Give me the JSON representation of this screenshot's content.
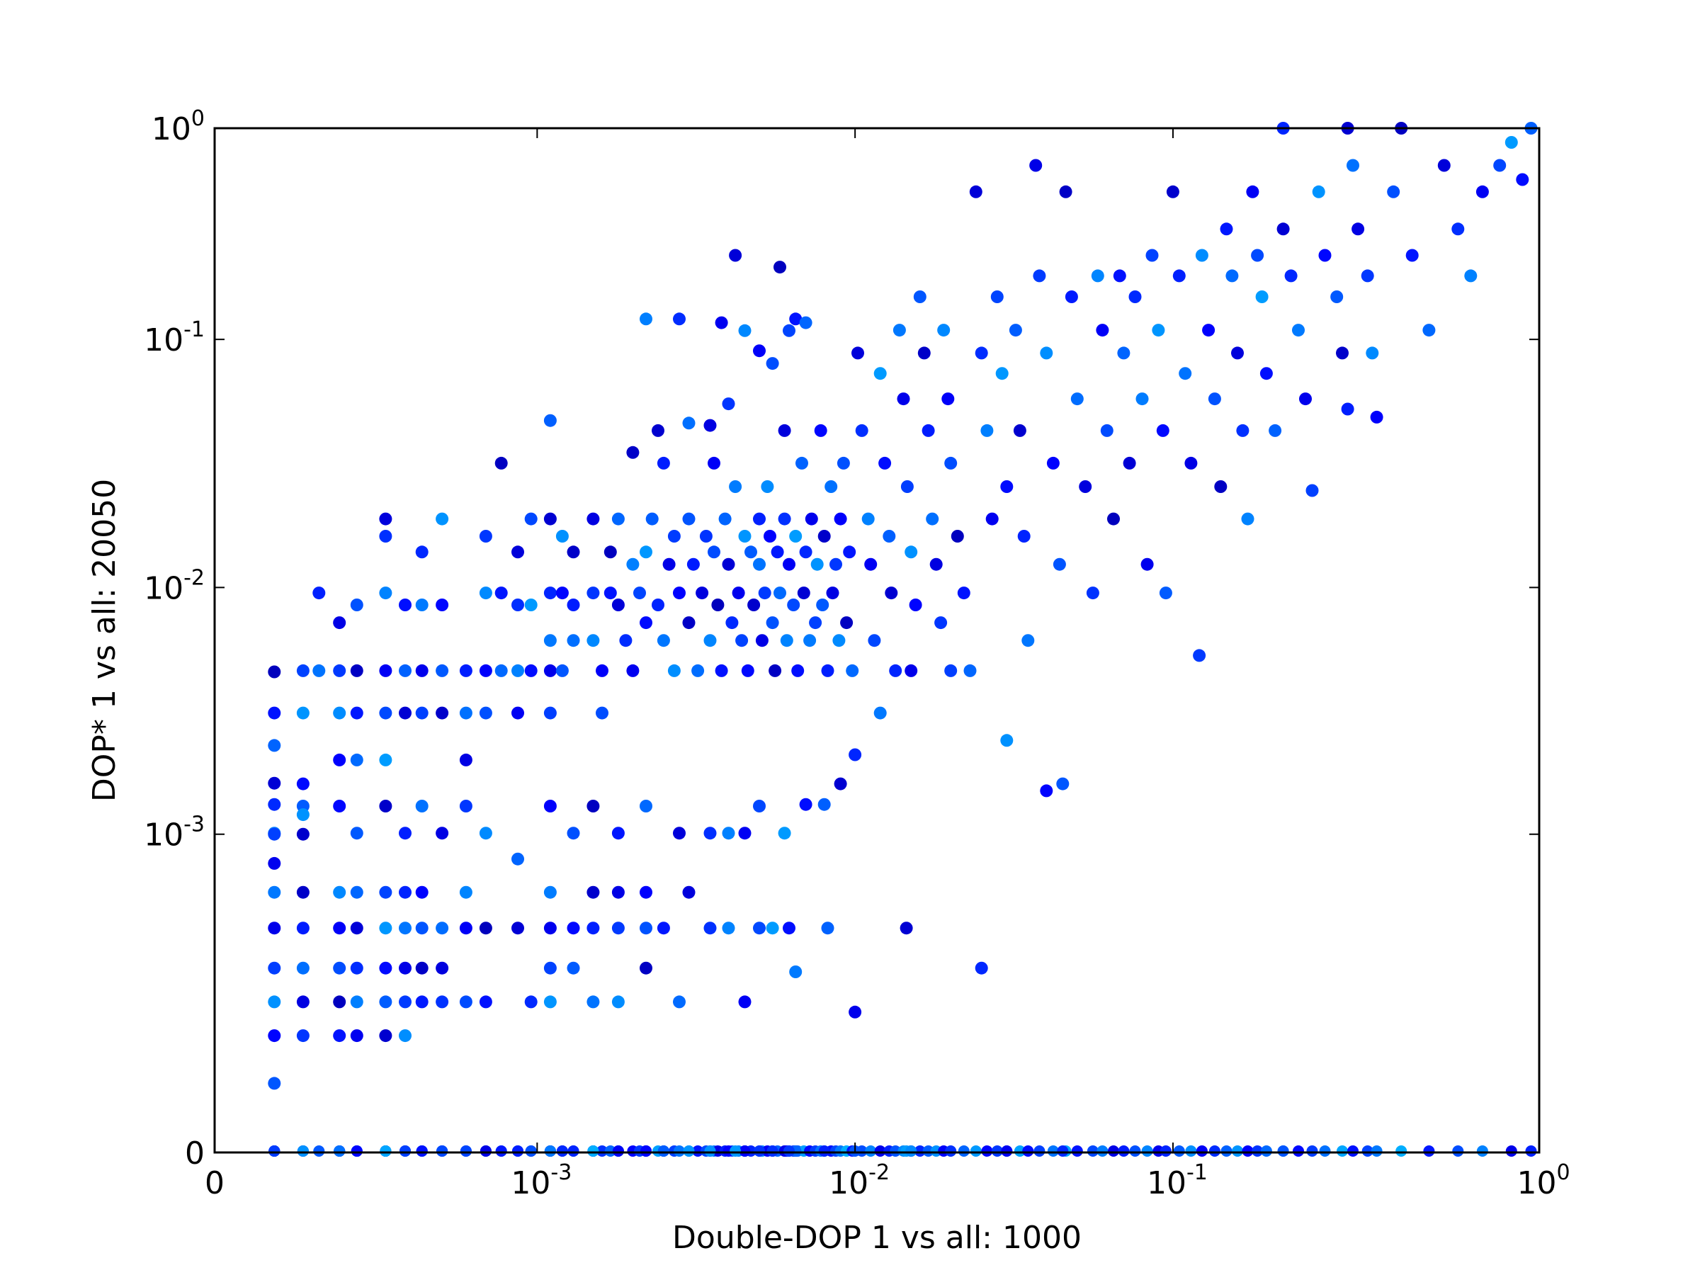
{
  "chart_data": {
    "type": "scatter",
    "xlabel": "Double-DOP 1 vs all: 1000",
    "ylabel": "DOP* 1 vs all: 20050",
    "xscale": "symlog",
    "yscale": "symlog",
    "xlim": [
      0,
      1
    ],
    "ylim": [
      0,
      1
    ],
    "xticks": [
      {
        "value": 0,
        "base": "0",
        "exp": ""
      },
      {
        "value": 0.001,
        "base": "10",
        "exp": "-3"
      },
      {
        "value": 0.01,
        "base": "10",
        "exp": "-2"
      },
      {
        "value": 0.1,
        "base": "10",
        "exp": "-1"
      },
      {
        "value": 1,
        "base": "10",
        "exp": "0"
      }
    ],
    "yticks": [
      {
        "value": 0,
        "base": "0",
        "exp": ""
      },
      {
        "value": 0.001,
        "base": "10",
        "exp": "-3"
      },
      {
        "value": 0.01,
        "base": "10",
        "exp": "-2"
      },
      {
        "value": 0.1,
        "base": "10",
        "exp": "-1"
      },
      {
        "value": 1,
        "base": "10",
        "exp": "0"
      }
    ],
    "grid": false,
    "colormap": "jet",
    "colors": {
      "low": "#0000b4",
      "mid": "#0080ff",
      "high": "#ffb000"
    },
    "points": [
      [
        0.00011,
        0.00455
      ],
      [
        0.00011,
        0.0031
      ],
      [
        0.00011,
        0.00229
      ],
      [
        0.00011,
        0.00161
      ],
      [
        0.00011,
        0.00132
      ],
      [
        0.00011,
        0.00101
      ],
      [
        0.00011,
        0.00078
      ],
      [
        0.00014,
        0.0046
      ],
      [
        0.00014,
        0.0031
      ],
      [
        0.00014,
        0.0016
      ],
      [
        0.00014,
        0.0013
      ],
      [
        0.00014,
        0.001
      ],
      [
        0.00016,
        0.0095
      ],
      [
        0.00016,
        0.0046
      ],
      [
        0.00019,
        0.0072
      ],
      [
        0.00019,
        0.0046
      ],
      [
        0.00019,
        0.0031
      ],
      [
        0.00019,
        0.002
      ],
      [
        0.00022,
        0.0085
      ],
      [
        0.00022,
        0.0046
      ],
      [
        0.00022,
        0.0031
      ],
      [
        0.00022,
        0.002
      ],
      [
        0.00028,
        0.0189
      ],
      [
        0.00028,
        0.0161
      ],
      [
        0.00028,
        0.0095
      ],
      [
        0.00028,
        0.0046
      ],
      [
        0.00028,
        0.0031
      ],
      [
        0.00028,
        0.002
      ],
      [
        0.00033,
        0.0085
      ],
      [
        0.00033,
        0.0046
      ],
      [
        0.00033,
        0.0031
      ],
      [
        0.00038,
        0.0139
      ],
      [
        0.00038,
        0.0085
      ],
      [
        0.00038,
        0.0046
      ],
      [
        0.00038,
        0.0031
      ],
      [
        0.00045,
        0.0189
      ],
      [
        0.00045,
        0.0085
      ],
      [
        0.00045,
        0.0046
      ],
      [
        0.00045,
        0.0031
      ],
      [
        0.00055,
        0.0046
      ],
      [
        0.00055,
        0.0031
      ],
      [
        0.00055,
        0.002
      ],
      [
        0.00065,
        0.0161
      ],
      [
        0.00065,
        0.0095
      ],
      [
        0.00065,
        0.0046
      ],
      [
        0.00065,
        0.0031
      ],
      [
        0.00074,
        0.0317
      ],
      [
        0.00074,
        0.0095
      ],
      [
        0.00074,
        0.0046
      ],
      [
        0.00085,
        0.0139
      ],
      [
        0.00085,
        0.0085
      ],
      [
        0.00085,
        0.0046
      ],
      [
        0.00085,
        0.0031
      ],
      [
        0.00095,
        0.0189
      ],
      [
        0.00095,
        0.0085
      ],
      [
        0.00095,
        0.0046
      ],
      [
        0.0011,
        0.0471
      ],
      [
        0.0011,
        0.0189
      ],
      [
        0.0011,
        0.0095
      ],
      [
        0.0011,
        0.0061
      ],
      [
        0.0011,
        0.0046
      ],
      [
        0.0011,
        0.0031
      ],
      [
        0.0012,
        0.0161
      ],
      [
        0.0012,
        0.0095
      ],
      [
        0.0012,
        0.0046
      ],
      [
        0.0013,
        0.0139
      ],
      [
        0.0013,
        0.0085
      ],
      [
        0.0013,
        0.0061
      ],
      [
        0.0015,
        0.0189
      ],
      [
        0.0015,
        0.0095
      ],
      [
        0.0015,
        0.0061
      ],
      [
        0.0016,
        0.0046
      ],
      [
        0.0016,
        0.0031
      ],
      [
        0.0017,
        0.0139
      ],
      [
        0.0017,
        0.0095
      ],
      [
        0.0018,
        0.0189
      ],
      [
        0.0018,
        0.0085
      ],
      [
        0.0019,
        0.0061
      ],
      [
        0.002,
        0.0124
      ],
      [
        0.002,
        0.0046
      ],
      [
        0.0021,
        0.0095
      ],
      [
        0.0022,
        0.0139
      ],
      [
        0.0022,
        0.0072
      ],
      [
        0.0023,
        0.0189
      ],
      [
        0.0024,
        0.0429
      ],
      [
        0.0024,
        0.0085
      ],
      [
        0.0025,
        0.0061
      ],
      [
        0.0026,
        0.0124
      ],
      [
        0.0027,
        0.0161
      ],
      [
        0.0027,
        0.0046
      ],
      [
        0.0028,
        0.0095
      ],
      [
        0.003,
        0.0189
      ],
      [
        0.003,
        0.0072
      ],
      [
        0.0031,
        0.0124
      ],
      [
        0.0032,
        0.0046
      ],
      [
        0.0033,
        0.0095
      ],
      [
        0.0034,
        0.0161
      ],
      [
        0.0035,
        0.0061
      ],
      [
        0.0036,
        0.0317
      ],
      [
        0.0036,
        0.0139
      ],
      [
        0.0037,
        0.0085
      ],
      [
        0.0038,
        0.0046
      ],
      [
        0.0039,
        0.0189
      ],
      [
        0.004,
        0.0124
      ],
      [
        0.0041,
        0.0072
      ],
      [
        0.0042,
        0.0255
      ],
      [
        0.0043,
        0.0095
      ],
      [
        0.0044,
        0.0061
      ],
      [
        0.0045,
        0.0161
      ],
      [
        0.0046,
        0.0046
      ],
      [
        0.0047,
        0.0139
      ],
      [
        0.0048,
        0.0085
      ],
      [
        0.005,
        0.0189
      ],
      [
        0.005,
        0.0124
      ],
      [
        0.0051,
        0.0061
      ],
      [
        0.0052,
        0.0095
      ],
      [
        0.0053,
        0.0255
      ],
      [
        0.0054,
        0.0161
      ],
      [
        0.0055,
        0.0072
      ],
      [
        0.0056,
        0.0046
      ],
      [
        0.0057,
        0.0139
      ],
      [
        0.0058,
        0.0095
      ],
      [
        0.006,
        0.0429
      ],
      [
        0.006,
        0.0189
      ],
      [
        0.0061,
        0.0061
      ],
      [
        0.0062,
        0.0124
      ],
      [
        0.0064,
        0.0085
      ],
      [
        0.0065,
        0.0161
      ],
      [
        0.0066,
        0.0046
      ],
      [
        0.0068,
        0.0317
      ],
      [
        0.0069,
        0.0095
      ],
      [
        0.007,
        0.0139
      ],
      [
        0.0072,
        0.0061
      ],
      [
        0.0073,
        0.0189
      ],
      [
        0.0075,
        0.0072
      ],
      [
        0.0076,
        0.0124
      ],
      [
        0.0078,
        0.0429
      ],
      [
        0.0079,
        0.0085
      ],
      [
        0.008,
        0.0161
      ],
      [
        0.0082,
        0.0046
      ],
      [
        0.0084,
        0.0255
      ],
      [
        0.0085,
        0.0095
      ],
      [
        0.0087,
        0.0124
      ],
      [
        0.0089,
        0.0061
      ],
      [
        0.009,
        0.0189
      ],
      [
        0.0092,
        0.0317
      ],
      [
        0.0094,
        0.0072
      ],
      [
        0.0096,
        0.0139
      ],
      [
        0.0098,
        0.0046
      ],
      [
        0.0102,
        0.0881
      ],
      [
        0.0105,
        0.0429
      ],
      [
        0.011,
        0.0189
      ],
      [
        0.0112,
        0.0124
      ],
      [
        0.0115,
        0.0061
      ],
      [
        0.012,
        0.0729
      ],
      [
        0.0124,
        0.0317
      ],
      [
        0.0128,
        0.0161
      ],
      [
        0.013,
        0.0095
      ],
      [
        0.0134,
        0.0046
      ],
      [
        0.0138,
        0.1106
      ],
      [
        0.0142,
        0.0576
      ],
      [
        0.0146,
        0.0255
      ],
      [
        0.015,
        0.0139
      ],
      [
        0.0155,
        0.0085
      ],
      [
        0.016,
        0.1592
      ],
      [
        0.0165,
        0.0881
      ],
      [
        0.017,
        0.0429
      ],
      [
        0.0175,
        0.0189
      ],
      [
        0.018,
        0.0124
      ],
      [
        0.0186,
        0.0072
      ],
      [
        0.019,
        0.1106
      ],
      [
        0.0196,
        0.0576
      ],
      [
        0.02,
        0.0317
      ],
      [
        0.021,
        0.0161
      ],
      [
        0.022,
        0.0095
      ],
      [
        0.023,
        0.0046
      ],
      [
        0.024,
        0.5
      ],
      [
        0.025,
        0.0881
      ],
      [
        0.026,
        0.0429
      ],
      [
        0.027,
        0.0189
      ],
      [
        0.028,
        0.1592
      ],
      [
        0.029,
        0.0729
      ],
      [
        0.03,
        0.0255
      ],
      [
        0.032,
        0.1106
      ],
      [
        0.033,
        0.0429
      ],
      [
        0.034,
        0.0161
      ],
      [
        0.035,
        0.0061
      ],
      [
        0.037,
        0.6667
      ],
      [
        0.038,
        0.2
      ],
      [
        0.04,
        0.0881
      ],
      [
        0.042,
        0.0317
      ],
      [
        0.044,
        0.0124
      ],
      [
        0.046,
        0.5
      ],
      [
        0.048,
        0.1592
      ],
      [
        0.05,
        0.0576
      ],
      [
        0.053,
        0.0255
      ],
      [
        0.056,
        0.0095
      ],
      [
        0.058,
        0.2
      ],
      [
        0.06,
        0.1106
      ],
      [
        0.062,
        0.0429
      ],
      [
        0.065,
        0.0189
      ],
      [
        0.068,
        0.2
      ],
      [
        0.07,
        0.0881
      ],
      [
        0.073,
        0.0317
      ],
      [
        0.076,
        0.1592
      ],
      [
        0.08,
        0.0576
      ],
      [
        0.083,
        0.0124
      ],
      [
        0.086,
        0.25
      ],
      [
        0.09,
        0.1106
      ],
      [
        0.093,
        0.0429
      ],
      [
        0.095,
        0.0095
      ],
      [
        0.1,
        0.5
      ],
      [
        0.104,
        0.2
      ],
      [
        0.108,
        0.0729
      ],
      [
        0.112,
        0.0317
      ],
      [
        0.118,
        0.0053
      ],
      [
        0.12,
        0.25
      ],
      [
        0.125,
        0.1106
      ],
      [
        0.13,
        0.0576
      ],
      [
        0.135,
        0.0255
      ],
      [
        0.14,
        0.3333
      ],
      [
        0.145,
        0.2
      ],
      [
        0.15,
        0.0881
      ],
      [
        0.155,
        0.0429
      ],
      [
        0.16,
        0.0189
      ],
      [
        0.165,
        0.5
      ],
      [
        0.17,
        0.25
      ],
      [
        0.175,
        0.1592
      ],
      [
        0.18,
        0.0729
      ],
      [
        0.19,
        0.0429
      ],
      [
        0.2,
        0.3333
      ],
      [
        0.21,
        0.2
      ],
      [
        0.22,
        0.1106
      ],
      [
        0.23,
        0.0576
      ],
      [
        0.24,
        0.0246
      ],
      [
        0.25,
        0.5
      ],
      [
        0.26,
        0.25
      ],
      [
        0.28,
        0.1592
      ],
      [
        0.29,
        0.0881
      ],
      [
        0.3,
        0.0524
      ],
      [
        0.31,
        0.6667
      ],
      [
        0.32,
        0.3333
      ],
      [
        0.34,
        0.2
      ],
      [
        0.35,
        0.0881
      ],
      [
        0.36,
        0.0486
      ],
      [
        0.4,
        0.5
      ],
      [
        0.42,
        1.0
      ],
      [
        0.45,
        0.25
      ],
      [
        0.5,
        0.1106
      ],
      [
        0.55,
        0.6667
      ],
      [
        0.6,
        0.3333
      ],
      [
        0.65,
        0.2
      ],
      [
        0.7,
        0.5
      ],
      [
        0.78,
        0.6667
      ],
      [
        0.84,
        0.8571
      ],
      [
        0.9,
        0.5714
      ],
      [
        0.95,
        1.0
      ],
      [
        0.3,
        1.0
      ],
      [
        0.2,
        1.0
      ],
      [
        0.00011,
        0.00061
      ],
      [
        0.00011,
        0.00045
      ],
      [
        0.00011,
        0.00032
      ],
      [
        0.00011,
        0.00024
      ],
      [
        0.00011,
        0.00018
      ],
      [
        0.00011,
        0.00012
      ],
      [
        0.00014,
        0.00061
      ],
      [
        0.00014,
        0.00045
      ],
      [
        0.00014,
        0.00032
      ],
      [
        0.00014,
        0.00024
      ],
      [
        0.00014,
        0.00018
      ],
      [
        0.00019,
        0.00061
      ],
      [
        0.00019,
        0.00045
      ],
      [
        0.00019,
        0.00032
      ],
      [
        0.00019,
        0.00024
      ],
      [
        0.00019,
        0.00018
      ],
      [
        0.00022,
        0.00061
      ],
      [
        0.00022,
        0.00045
      ],
      [
        0.00022,
        0.00032
      ],
      [
        0.00022,
        0.00024
      ],
      [
        0.00022,
        0.00018
      ],
      [
        0.00028,
        0.00061
      ],
      [
        0.00028,
        0.00045
      ],
      [
        0.00028,
        0.00032
      ],
      [
        0.00028,
        0.00024
      ],
      [
        0.00028,
        0.00018
      ],
      [
        0.00033,
        0.00061
      ],
      [
        0.00033,
        0.00045
      ],
      [
        0.00033,
        0.00032
      ],
      [
        0.00033,
        0.00024
      ],
      [
        0.00033,
        0.00018
      ],
      [
        0.00038,
        0.00061
      ],
      [
        0.00038,
        0.00045
      ],
      [
        0.00038,
        0.00032
      ],
      [
        0.00038,
        0.00024
      ],
      [
        0.00045,
        0.00045
      ],
      [
        0.00045,
        0.00032
      ],
      [
        0.00045,
        0.00024
      ],
      [
        0.00055,
        0.00061
      ],
      [
        0.00055,
        0.00045
      ],
      [
        0.00055,
        0.00024
      ],
      [
        0.00065,
        0.00045
      ],
      [
        0.00065,
        0.00024
      ],
      [
        0.00085,
        0.00081
      ],
      [
        0.00085,
        0.00045
      ],
      [
        0.00095,
        0.00024
      ],
      [
        0.0011,
        0.00061
      ],
      [
        0.0011,
        0.00045
      ],
      [
        0.0011,
        0.00032
      ],
      [
        0.0011,
        0.00024
      ],
      [
        0.0013,
        0.00045
      ],
      [
        0.0013,
        0.00032
      ],
      [
        0.0015,
        0.00061
      ],
      [
        0.0015,
        0.00045
      ],
      [
        0.0015,
        0.00024
      ],
      [
        0.0018,
        0.00061
      ],
      [
        0.0018,
        0.00045
      ],
      [
        0.0018,
        0.00024
      ],
      [
        0.0022,
        0.00061
      ],
      [
        0.0022,
        0.00045
      ],
      [
        0.0022,
        0.00032
      ],
      [
        0.0025,
        0.00045
      ],
      [
        0.0028,
        0.00024
      ],
      [
        0.003,
        0.00061
      ],
      [
        0.0035,
        0.00045
      ],
      [
        0.004,
        0.00045
      ],
      [
        0.0045,
        0.00024
      ],
      [
        0.005,
        0.00045
      ],
      [
        0.0055,
        0.00045
      ],
      [
        0.0062,
        0.00045
      ],
      [
        0.0082,
        0.00045
      ],
      [
        0.0145,
        0.00045
      ],
      [
        0.025,
        0.00032
      ],
      [
        0.0065,
        0.00031
      ],
      [
        0.01,
        0.00022
      ],
      [
        0.00011,
        0.001
      ],
      [
        0.00014,
        0.0012
      ],
      [
        0.00019,
        0.0013
      ],
      [
        0.00022,
        0.00101
      ],
      [
        0.00028,
        0.0013
      ],
      [
        0.00033,
        0.00101
      ],
      [
        0.00038,
        0.0013
      ],
      [
        0.00045,
        0.00101
      ],
      [
        0.00055,
        0.0013
      ],
      [
        0.00065,
        0.00101
      ],
      [
        0.0011,
        0.0013
      ],
      [
        0.0013,
        0.00101
      ],
      [
        0.0015,
        0.0013
      ],
      [
        0.0018,
        0.00101
      ],
      [
        0.0022,
        0.0013
      ],
      [
        0.0028,
        0.00101
      ],
      [
        0.0035,
        0.00101
      ],
      [
        0.004,
        0.00101
      ],
      [
        0.0045,
        0.00101
      ],
      [
        0.005,
        0.0013
      ],
      [
        0.006,
        0.00101
      ],
      [
        0.007,
        0.00132
      ],
      [
        0.008,
        0.00132
      ],
      [
        0.009,
        0.0016
      ],
      [
        0.01,
        0.0021
      ],
      [
        0.012,
        0.0031
      ],
      [
        0.015,
        0.0046
      ],
      [
        0.02,
        0.0046
      ],
      [
        0.03,
        0.0024
      ],
      [
        0.04,
        0.0015
      ],
      [
        0.045,
        0.0016
      ],
      [
        0.002,
        0.035
      ],
      [
        0.0025,
        0.0317
      ],
      [
        0.003,
        0.046
      ],
      [
        0.0035,
        0.045
      ],
      [
        0.004,
        0.055
      ],
      [
        0.0045,
        0.11
      ],
      [
        0.005,
        0.09
      ],
      [
        0.0055,
        0.08
      ],
      [
        0.0058,
        0.22
      ],
      [
        0.0065,
        0.125
      ],
      [
        0.007,
        0.12
      ],
      [
        0.0042,
        0.25
      ],
      [
        0.0028,
        0.125
      ],
      [
        0.0022,
        0.125
      ],
      [
        0.0038,
        0.12
      ],
      [
        0.0062,
        0.11
      ]
    ]
  }
}
